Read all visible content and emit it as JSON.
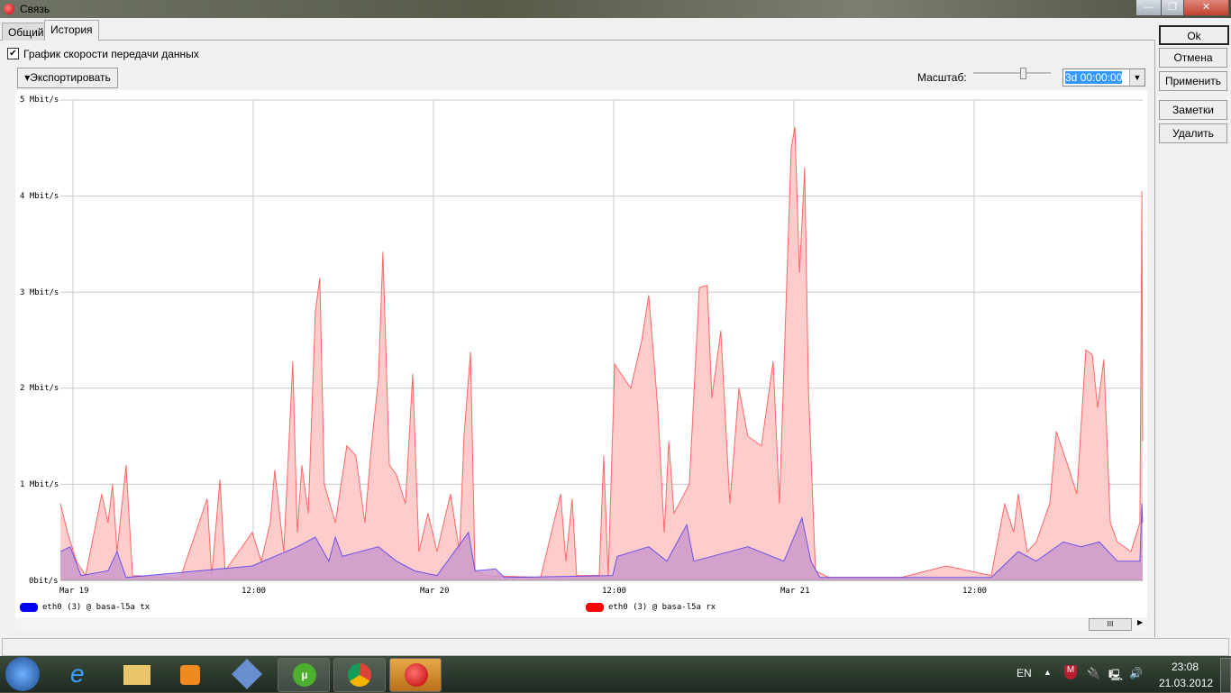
{
  "window": {
    "title": "Связь",
    "minimize": "—",
    "restore": "❐",
    "close": "✕"
  },
  "tabs": [
    {
      "label": "Общий",
      "active": false
    },
    {
      "label": "История",
      "active": true
    }
  ],
  "checkbox": {
    "label": "График скорости передачи данных",
    "checked": true
  },
  "export_button": "▾Экспортировать",
  "scale": {
    "label": "Масштаб:",
    "slider_fraction": 0.62,
    "value": "3d 00:00:00"
  },
  "side_buttons": {
    "ok": "Ok",
    "cancel": "Отмена",
    "apply": "Применить",
    "notes": "Заметки",
    "delete": "Удалить"
  },
  "scrollbar": {
    "thumb_label": "III"
  },
  "taskbar": {
    "lang": "EN",
    "time": "23:08",
    "date": "21.03.2012"
  },
  "colors": {
    "tx": "#0000ff",
    "rx": "#ff0000",
    "rx_fill": "#ffcccc",
    "tx_fill": "#cc99cc"
  },
  "chart_data": {
    "type": "area",
    "y_ticks": [
      "0bit/s",
      "1 Mbit/s",
      "2 Mbit/s",
      "3 Mbit/s",
      "4 Mbit/s",
      "5 Mbit/s"
    ],
    "ylim": [
      0,
      5
    ],
    "x_ticks": [
      "Mar 19",
      "12:00",
      "Mar 20",
      "12:00",
      "Mar 21",
      "12:00"
    ],
    "xlim": [
      "03-18 23:10",
      "03-21 23:13"
    ],
    "grid": true,
    "legend_placement": "bottom",
    "series": [
      {
        "name": "eth0 (3) @ basa-l5a tx",
        "color": "#0000ff",
        "unit": "Mbit/s",
        "points": [
          [
            "03-18 23:10",
            0.3
          ],
          [
            "03-18 23:49",
            0.35
          ],
          [
            "03-19 00:32",
            0.05
          ],
          [
            "03-19 02:20",
            0.1
          ],
          [
            "03-19 02:56",
            0.3
          ],
          [
            "03-19 03:32",
            0.03
          ],
          [
            "03-19 11:56",
            0.15
          ],
          [
            "03-19 14:56",
            0.35
          ],
          [
            "03-19 16:08",
            0.45
          ],
          [
            "03-19 17:02",
            0.2
          ],
          [
            "03-19 17:28",
            0.45
          ],
          [
            "03-19 17:56",
            0.25
          ],
          [
            "03-19 20:20",
            0.35
          ],
          [
            "03-19 21:32",
            0.2
          ],
          [
            "03-19 22:44",
            0.1
          ],
          [
            "03-20 00:14",
            0.05
          ],
          [
            "03-20 02:20",
            0.5
          ],
          [
            "03-20 02:46",
            0.1
          ],
          [
            "03-20 04:08",
            0.12
          ],
          [
            "03-20 04:44",
            0.03
          ],
          [
            "03-20 11:56",
            0.05
          ],
          [
            "03-20 12:14",
            0.25
          ],
          [
            "03-20 14:20",
            0.35
          ],
          [
            "03-20 15:32",
            0.2
          ],
          [
            "03-20 16:52",
            0.58
          ],
          [
            "03-20 17:20",
            0.2
          ],
          [
            "03-20 20:56",
            0.35
          ],
          [
            "03-20 23:20",
            0.2
          ],
          [
            "03-21 00:32",
            0.65
          ],
          [
            "03-21 01:08",
            0.2
          ],
          [
            "03-21 01:44",
            0.03
          ],
          [
            "03-21 13:08",
            0.03
          ],
          [
            "03-21 14:56",
            0.3
          ],
          [
            "03-21 16:08",
            0.2
          ],
          [
            "03-21 17:56",
            0.4
          ],
          [
            "03-21 19:08",
            0.35
          ],
          [
            "03-21 20:20",
            0.4
          ],
          [
            "03-21 21:32",
            0.2
          ],
          [
            "03-21 23:02",
            0.2
          ],
          [
            "03-21 23:10",
            0.8
          ],
          [
            "03-21 23:13",
            0.6
          ]
        ]
      },
      {
        "name": "eth0 (3) @ basa-l5a rx",
        "color": "#ff0000",
        "unit": "Mbit/s",
        "points": [
          [
            "03-18 23:10",
            0.8
          ],
          [
            "03-18 23:38",
            0.5
          ],
          [
            "03-19 00:14",
            0.2
          ],
          [
            "03-19 00:50",
            0.05
          ],
          [
            "03-19 01:55",
            0.9
          ],
          [
            "03-19 02:20",
            0.6
          ],
          [
            "03-19 02:38",
            1.0
          ],
          [
            "03-19 02:56",
            0.3
          ],
          [
            "03-19 03:32",
            1.2
          ],
          [
            "03-19 03:58",
            0.05
          ],
          [
            "03-19 07:08",
            0.02
          ],
          [
            "03-19 08:56",
            0.85
          ],
          [
            "03-19 09:14",
            0.05
          ],
          [
            "03-19 09:47",
            1.05
          ],
          [
            "03-19 10:08",
            0.1
          ],
          [
            "03-19 11:56",
            0.5
          ],
          [
            "03-19 12:32",
            0.2
          ],
          [
            "03-19 13:08",
            0.6
          ],
          [
            "03-19 13:26",
            1.15
          ],
          [
            "03-19 14:02",
            0.3
          ],
          [
            "03-19 14:38",
            2.28
          ],
          [
            "03-19 14:56",
            0.5
          ],
          [
            "03-19 15:14",
            1.2
          ],
          [
            "03-19 15:40",
            0.7
          ],
          [
            "03-19 16:08",
            2.8
          ],
          [
            "03-19 16:26",
            3.15
          ],
          [
            "03-19 16:44",
            1.0
          ],
          [
            "03-19 17:28",
            0.6
          ],
          [
            "03-19 18:14",
            1.4
          ],
          [
            "03-19 18:50",
            1.3
          ],
          [
            "03-19 19:26",
            0.6
          ],
          [
            "03-19 19:52",
            1.4
          ],
          [
            "03-19 20:20",
            2.1
          ],
          [
            "03-19 20:38",
            3.42
          ],
          [
            "03-19 21:04",
            1.2
          ],
          [
            "03-19 21:32",
            1.1
          ],
          [
            "03-19 22:08",
            0.8
          ],
          [
            "03-19 22:37",
            2.15
          ],
          [
            "03-19 23:02",
            0.3
          ],
          [
            "03-19 23:38",
            0.7
          ],
          [
            "03-20 00:14",
            0.3
          ],
          [
            "03-20 01:08",
            0.9
          ],
          [
            "03-20 01:44",
            0.3
          ],
          [
            "03-20 02:02",
            1.5
          ],
          [
            "03-20 02:28",
            2.38
          ],
          [
            "03-20 02:46",
            0.1
          ],
          [
            "03-20 03:32",
            0.05
          ],
          [
            "03-20 07:08",
            0.03
          ],
          [
            "03-20 08:28",
            0.9
          ],
          [
            "03-20 08:49",
            0.2
          ],
          [
            "03-20 09:14",
            0.85
          ],
          [
            "03-20 09:32",
            0.05
          ],
          [
            "03-20 11:02",
            0.05
          ],
          [
            "03-20 11:20",
            1.3
          ],
          [
            "03-20 11:38",
            0.05
          ],
          [
            "03-20 12:04",
            2.25
          ],
          [
            "03-20 13:08",
            2.0
          ],
          [
            "03-20 13:52",
            2.5
          ],
          [
            "03-20 14:20",
            2.97
          ],
          [
            "03-20 14:56",
            1.8
          ],
          [
            "03-20 15:22",
            0.5
          ],
          [
            "03-20 15:40",
            1.45
          ],
          [
            "03-20 16:01",
            0.7
          ],
          [
            "03-20 17:02",
            1.0
          ],
          [
            "03-20 17:42",
            3.05
          ],
          [
            "03-20 18:14",
            3.07
          ],
          [
            "03-20 18:32",
            1.9
          ],
          [
            "03-20 19:08",
            2.6
          ],
          [
            "03-20 19:44",
            0.8
          ],
          [
            "03-20 20:20",
            2.0
          ],
          [
            "03-20 20:56",
            1.5
          ],
          [
            "03-20 21:50",
            1.4
          ],
          [
            "03-20 22:37",
            2.28
          ],
          [
            "03-20 23:02",
            0.8
          ],
          [
            "03-20 23:49",
            4.5
          ],
          [
            "03-21 00:04",
            4.72
          ],
          [
            "03-21 00:22",
            3.2
          ],
          [
            "03-21 00:43",
            4.3
          ],
          [
            "03-21 00:58",
            2.0
          ],
          [
            "03-21 01:26",
            0.1
          ],
          [
            "03-21 02:20",
            0.03
          ],
          [
            "03-21 07:08",
            0.03
          ],
          [
            "03-21 10:08",
            0.15
          ],
          [
            "03-21 13:08",
            0.05
          ],
          [
            "03-21 14:02",
            0.8
          ],
          [
            "03-21 14:38",
            0.5
          ],
          [
            "03-21 14:56",
            0.9
          ],
          [
            "03-21 15:32",
            0.3
          ],
          [
            "03-21 16:08",
            0.4
          ],
          [
            "03-21 17:02",
            0.8
          ],
          [
            "03-21 17:28",
            1.55
          ],
          [
            "03-21 18:14",
            1.2
          ],
          [
            "03-21 18:50",
            0.9
          ],
          [
            "03-21 19:26",
            2.4
          ],
          [
            "03-21 19:52",
            2.35
          ],
          [
            "03-21 20:13",
            1.8
          ],
          [
            "03-21 20:38",
            2.3
          ],
          [
            "03-21 21:04",
            0.6
          ],
          [
            "03-21 21:32",
            0.4
          ],
          [
            "03-21 22:26",
            0.3
          ],
          [
            "03-21 23:02",
            0.6
          ],
          [
            "03-21 23:10",
            4.05
          ],
          [
            "03-21 23:13",
            1.45
          ]
        ]
      }
    ]
  }
}
